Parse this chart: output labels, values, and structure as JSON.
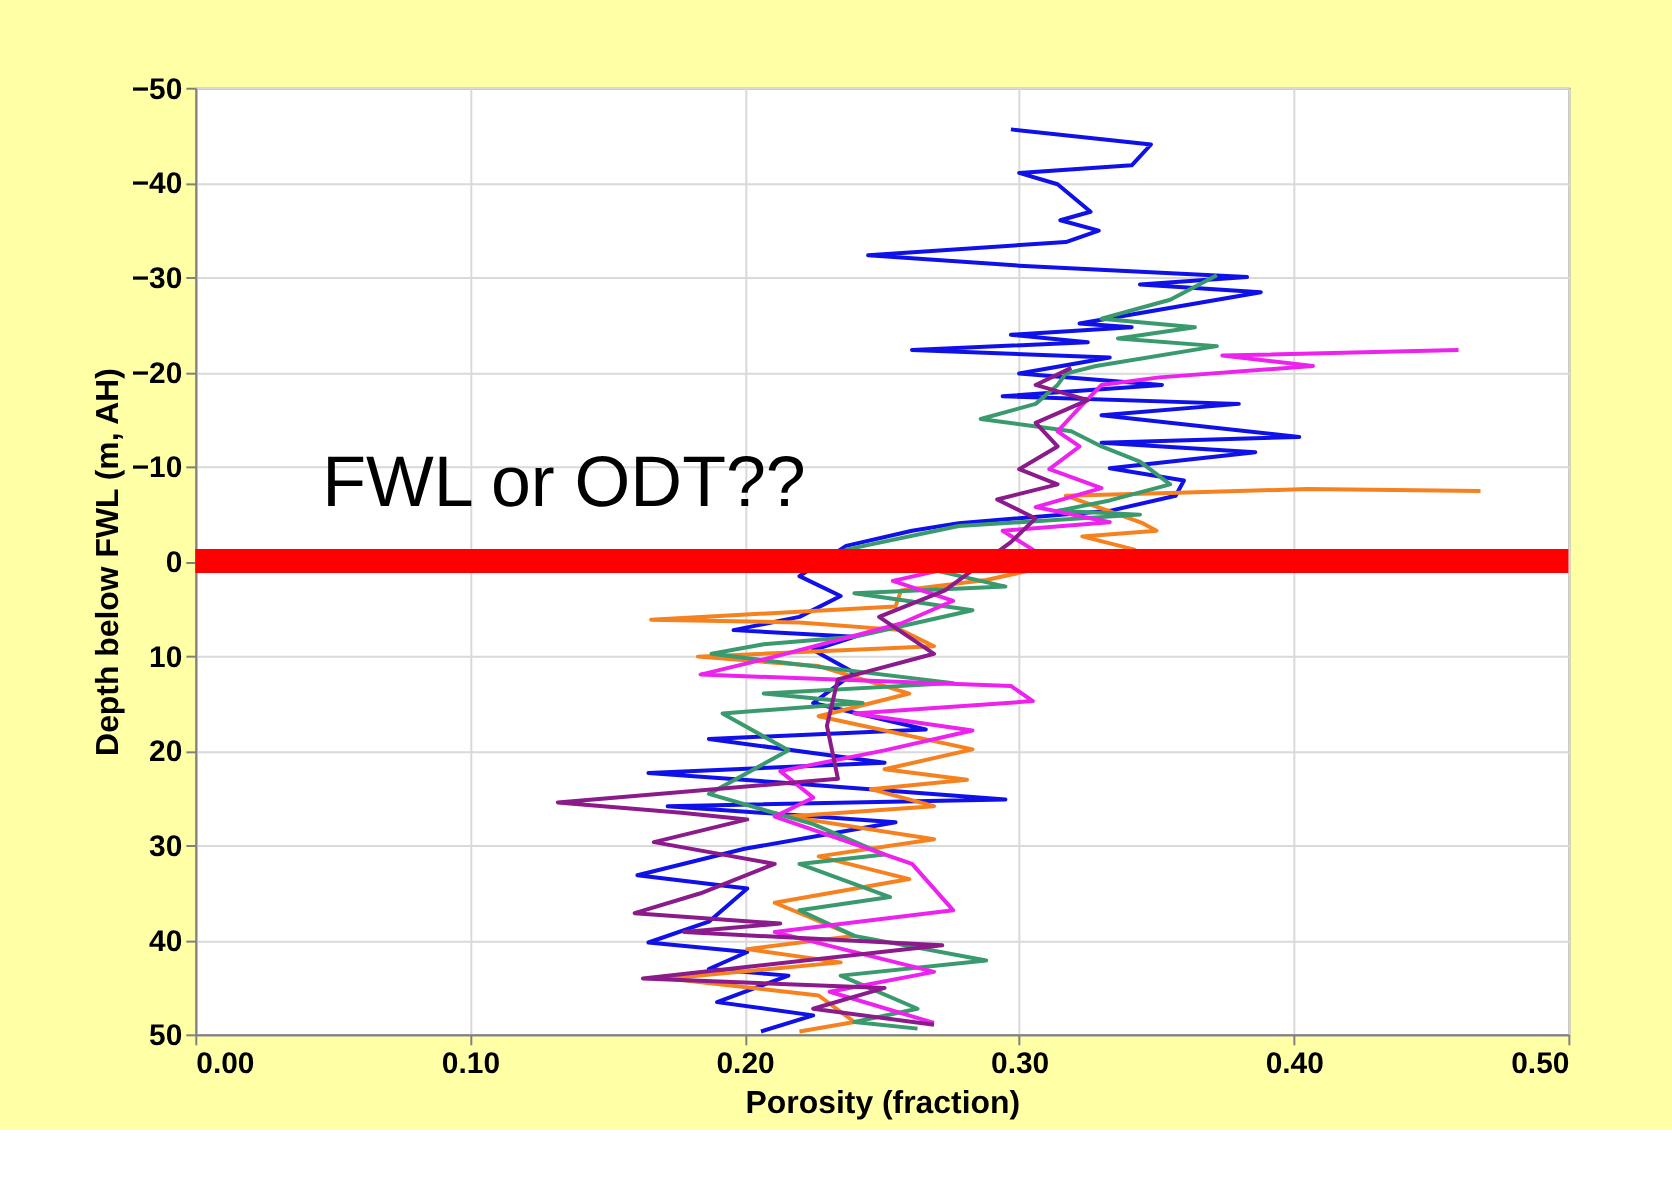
{
  "chart_data": {
    "type": "line",
    "xlabel": "Porosity (fraction)",
    "ylabel": "Depth below FWL (m, AH)",
    "xlim": [
      0,
      0.5
    ],
    "xticks": [
      {
        "value": 0,
        "label": "0.00"
      },
      {
        "value": 0.1,
        "label": "0.10"
      },
      {
        "value": 0.2,
        "label": "0.20"
      },
      {
        "value": 0.3,
        "label": "0.30"
      },
      {
        "value": 0.4,
        "label": "0.40"
      },
      {
        "value": 0.5,
        "label": "0.50"
      }
    ],
    "ylim": [
      50,
      -50
    ],
    "yticks": [
      -50,
      -40,
      -30,
      -20,
      -10,
      0,
      10,
      20,
      30,
      40,
      50
    ],
    "grid": true,
    "marker": "none",
    "line_style": "solid",
    "ref_lines": [
      {
        "axis": "y",
        "value": 0,
        "color": "#ff0000"
      }
    ],
    "annotations": [
      "FWL or ODT??"
    ],
    "series": [
      {
        "color": "#1010e8",
        "x": [
          0.297,
          0.348,
          0.341,
          0.3,
          0.314,
          0.326,
          0.315,
          0.329,
          0.317,
          0.245,
          0.3,
          0.383,
          0.344,
          0.388,
          0.322,
          0.341,
          0.297,
          0.325,
          0.261,
          0.333,
          0.3,
          0.352,
          0.294,
          0.38,
          0.33,
          0.402,
          0.33,
          0.386,
          0.333,
          0.36,
          0.357,
          0.333,
          0.278,
          0.261,
          0.237,
          0.22,
          0.235,
          0.22,
          0.196,
          0.24,
          0.225,
          0.24,
          0.225,
          0.266,
          0.187,
          0.251,
          0.165,
          0.213,
          0.295,
          0.172,
          0.255,
          0.2,
          0.161,
          0.201,
          0.187,
          0.165,
          0.201,
          0.187,
          0.216,
          0.19,
          0.225,
          0.206
        ],
        "values": [
          -45.6,
          -44,
          -41.8,
          -41,
          -39.8,
          -36.9,
          -36,
          -34.9,
          -33.7,
          -32.3,
          -31.2,
          -30,
          -29.2,
          -28.4,
          -25.1,
          -24.7,
          -23.9,
          -23.1,
          -22.3,
          -21.5,
          -19.8,
          -18.6,
          -17.4,
          -16.6,
          -15.4,
          -13.1,
          -12.5,
          -11.5,
          -9.8,
          -8.5,
          -6.9,
          -5.3,
          -4,
          -3.2,
          -1.6,
          1.6,
          3.7,
          5.9,
          7.3,
          8,
          9.4,
          11.8,
          15,
          17.8,
          18.8,
          21.3,
          22.4,
          23.4,
          25.2,
          25.9,
          27.6,
          30.4,
          33.2,
          34.6,
          38.1,
          40.3,
          41.3,
          43.1,
          43.8,
          46.6,
          48,
          49.7
        ]
      },
      {
        "color": "#f5821f",
        "x": [
          0.468,
          0.405,
          0.358,
          0.317,
          0.345,
          0.35,
          0.323,
          0.342,
          0.32,
          0.288,
          0.257,
          0.255,
          0.166,
          0.22,
          0.257,
          0.269,
          0.183,
          0.227,
          0.26,
          0.227,
          0.283,
          0.251,
          0.281,
          0.246,
          0.269,
          0.216,
          0.269,
          0.227,
          0.26,
          0.211,
          0.24,
          0.201,
          0.235,
          0.172,
          0.227,
          0.24,
          0.22
        ],
        "values": [
          -7.4,
          -7.6,
          -7.2,
          -6.9,
          -4,
          -3.2,
          -2.6,
          -1.2,
          0,
          2,
          3.1,
          4.8,
          6.2,
          6.5,
          7.3,
          9,
          10.1,
          11.1,
          14,
          16.4,
          19.9,
          22,
          23.1,
          24.1,
          25.9,
          27,
          29.4,
          31.2,
          33.6,
          36.1,
          39.6,
          41,
          42.4,
          44.1,
          45.9,
          48.7,
          49.7
        ]
      },
      {
        "color": "#3a9a6e",
        "x": [
          0.372,
          0.355,
          0.33,
          0.364,
          0.336,
          0.372,
          0.328,
          0.317,
          0.314,
          0.306,
          0.286,
          0.319,
          0.33,
          0.344,
          0.355,
          0.333,
          0.314,
          0.344,
          0.278,
          0.237,
          0.295,
          0.24,
          0.283,
          0.24,
          0.207,
          0.188,
          0.276,
          0.207,
          0.243,
          0.192,
          0.216,
          0.187,
          0.225,
          0.251,
          0.22,
          0.253,
          0.22,
          0.24,
          0.288,
          0.235,
          0.263,
          0.24,
          0.263
        ],
        "values": [
          -30.2,
          -27.6,
          -25.6,
          -24.7,
          -23.5,
          -22.7,
          -20.6,
          -19.8,
          -18.6,
          -16.6,
          -15,
          -13.7,
          -12.1,
          -10.5,
          -8.1,
          -6.4,
          -5.3,
          -4.9,
          -3.7,
          -1.2,
          2.7,
          3.4,
          5.2,
          8,
          8.8,
          9.8,
          12.9,
          14,
          15,
          16.1,
          20,
          24.6,
          27.8,
          31,
          32,
          35.5,
          36.9,
          39.6,
          42.2,
          43.8,
          47.3,
          48.7,
          49.4
        ]
      },
      {
        "color": "#ee22ee",
        "x": [
          0.46,
          0.374,
          0.407,
          0.351,
          0.33,
          0.322,
          0.314,
          0.322,
          0.311,
          0.33,
          0.306,
          0.333,
          0.294,
          0.305,
          0.254,
          0.276,
          0.257,
          0.211,
          0.184,
          0.297,
          0.305,
          0.24,
          0.283,
          0.251,
          0.213,
          0.225,
          0.211,
          0.261,
          0.276,
          0.211,
          0.269,
          0.231,
          0.269
        ],
        "values": [
          -22.3,
          -21.7,
          -20.6,
          -19.4,
          -18.6,
          -16.2,
          -13.7,
          -12.1,
          -9.7,
          -7.7,
          -5.7,
          -4.1,
          -3.2,
          -1.2,
          2.1,
          4.2,
          6.6,
          10.1,
          12,
          13.2,
          14.8,
          16.1,
          17.9,
          20,
          22.2,
          25,
          27,
          32,
          36.9,
          39.2,
          43.4,
          45.5,
          48.8
        ]
      },
      {
        "color": "#8b1a8b",
        "x": [
          0.319,
          0.306,
          0.325,
          0.306,
          0.314,
          0.3,
          0.314,
          0.292,
          0.306,
          0.297,
          null,
          0.273,
          0.249,
          0.269,
          0.234,
          0.23,
          0.234,
          0.132,
          0.177,
          0.201,
          0.167,
          0.211,
          0.184,
          0.16,
          0.213,
          0.178,
          0.272,
          0.163,
          0.251,
          0.225,
          0.269
        ],
        "values": [
          -20.4,
          -18.6,
          -17,
          -14.6,
          -12.1,
          -9.7,
          -8.1,
          -6.5,
          -4.5,
          -2,
          null,
          3.1,
          5.9,
          9.8,
          12.5,
          17.4,
          23,
          25.5,
          26.6,
          27.3,
          29.7,
          32,
          35.1,
          37.2,
          38.3,
          39.2,
          40.6,
          44.1,
          45.1,
          47.3,
          49
        ]
      }
    ]
  }
}
